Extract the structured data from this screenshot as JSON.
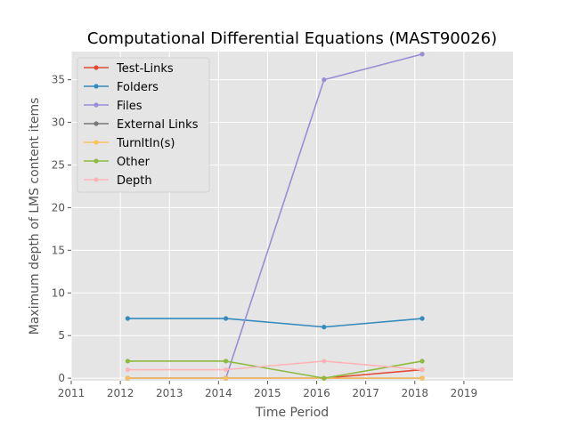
{
  "chart_data": {
    "type": "line",
    "title": "Computational Differential Equations (MAST90026)",
    "xlabel": "Time Period",
    "ylabel": "Maximum depth of LMS content items",
    "xlim": [
      2011,
      2020
    ],
    "ylim": [
      -0.3,
      38.3
    ],
    "xticks": [
      2011,
      2012,
      2013,
      2014,
      2015,
      2016,
      2017,
      2018,
      2019
    ],
    "yticks": [
      0,
      5,
      10,
      15,
      20,
      25,
      30,
      35
    ],
    "grid": true,
    "legend_position": "top-left",
    "x": [
      2012.15,
      2014.15,
      2016.15,
      2018.15
    ],
    "series": [
      {
        "name": "Test-Links",
        "color": "#E24A33",
        "values": [
          0,
          0,
          0,
          1
        ]
      },
      {
        "name": "Folders",
        "color": "#348ABD",
        "values": [
          7,
          7,
          6,
          7
        ]
      },
      {
        "name": "Files",
        "color": "#988ED5",
        "values": [
          0,
          0,
          35,
          38
        ]
      },
      {
        "name": "External Links",
        "color": "#777777",
        "values": [
          0,
          0,
          0,
          0
        ]
      },
      {
        "name": "TurnItIn(s)",
        "color": "#FBC15E",
        "values": [
          0,
          0,
          0,
          0
        ]
      },
      {
        "name": "Other",
        "color": "#8EBA42",
        "values": [
          2,
          2,
          0,
          2
        ]
      },
      {
        "name": "Depth",
        "color": "#FFB5B8",
        "values": [
          1,
          1,
          2,
          1
        ]
      }
    ]
  }
}
